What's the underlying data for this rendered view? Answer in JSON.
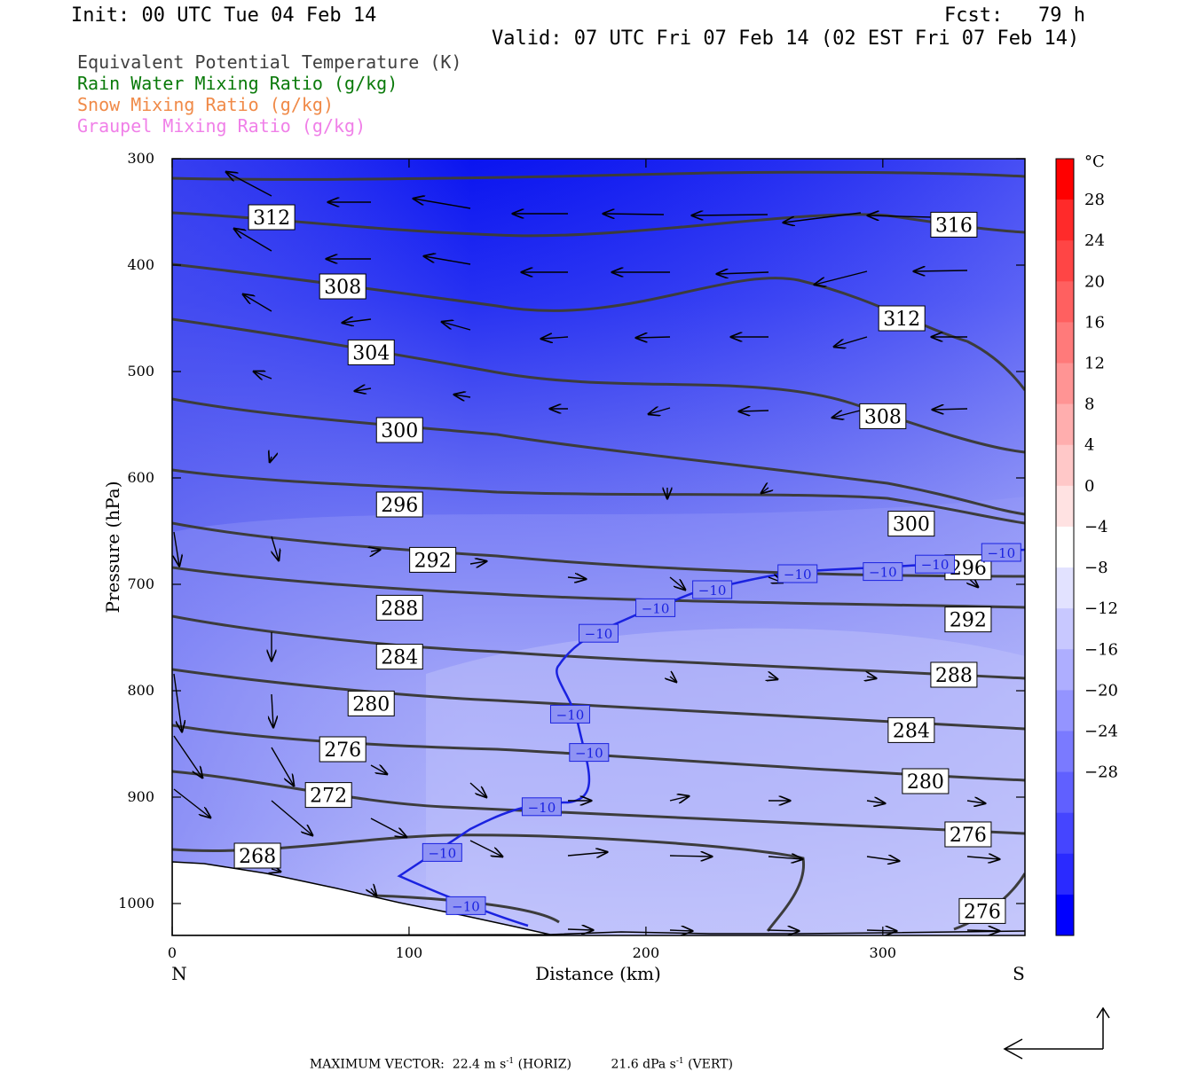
{
  "header": {
    "init": "Init: 00 UTC Tue 04 Feb 14",
    "fcst": "Fcst:   79 h",
    "valid": "Valid: 07 UTC Fri 07 Feb 14 (02 EST Fri 07 Feb 14)"
  },
  "legend": [
    {
      "label": "Equivalent Potential Temperature (K)",
      "color": "#404040"
    },
    {
      "label": "Rain Water Mixing Ratio (g/kg)",
      "color": "#0a7a0a"
    },
    {
      "label": "Snow Mixing Ratio (g/kg)",
      "color": "#f08a48"
    },
    {
      "label": "Graupel Mixing Ratio (g/kg)",
      "color": "#f080e8"
    }
  ],
  "footer": {
    "max_label": "MAXIMUM VECTOR:",
    "horiz_value": "22.4 m s",
    "horiz_exp": "-1",
    "horiz_suffix": " (HORIZ)",
    "vert_value": "21.6 dPa s",
    "vert_exp": "-1",
    "vert_suffix": " (VERT)"
  },
  "chart_data": {
    "type": "contour-cross-section",
    "xlabel": "Distance (km)",
    "ylabel": "Pressure (hPa)",
    "xlim": [
      0,
      360
    ],
    "ylim": [
      1030,
      300
    ],
    "x_ticks": [
      "0",
      "100",
      "200",
      "300"
    ],
    "y_ticks": [
      "300",
      "400",
      "500",
      "600",
      "700",
      "800",
      "900",
      "1000"
    ],
    "endpoints": {
      "left": "N",
      "right": "S"
    },
    "colorbar": {
      "unit": "°C",
      "labels": [
        "28",
        "24",
        "20",
        "16",
        "12",
        "8",
        "4",
        "0",
        "-4",
        "-8",
        "-12",
        "-16",
        "-20",
        "-24",
        "-28"
      ],
      "colors": [
        "#ff0000",
        "#ff2a2a",
        "#ff4545",
        "#ff6060",
        "#ff7a7a",
        "#ff9494",
        "#ffaeae",
        "#ffc8c8",
        "#ffe2e2",
        "#ffffff",
        "#e2e2ff",
        "#c8c8ff",
        "#aeaeff",
        "#9494ff",
        "#7a7aff",
        "#6060ff",
        "#4545ff",
        "#2a2aff",
        "#0000ff"
      ]
    },
    "theta_e_labels": [
      {
        "text": "312",
        "x": 42,
        "p": 355
      },
      {
        "text": "316",
        "x": 330,
        "p": 362
      },
      {
        "text": "308",
        "x": 72,
        "p": 420
      },
      {
        "text": "312",
        "x": 308,
        "p": 450
      },
      {
        "text": "304",
        "x": 84,
        "p": 482
      },
      {
        "text": "308",
        "x": 300,
        "p": 542
      },
      {
        "text": "300",
        "x": 96,
        "p": 555
      },
      {
        "text": "296",
        "x": 96,
        "p": 625
      },
      {
        "text": "300",
        "x": 312,
        "p": 643
      },
      {
        "text": "292",
        "x": 110,
        "p": 677
      },
      {
        "text": "296",
        "x": 336,
        "p": 684
      },
      {
        "text": "288",
        "x": 96,
        "p": 722
      },
      {
        "text": "292",
        "x": 336,
        "p": 733
      },
      {
        "text": "284",
        "x": 96,
        "p": 768
      },
      {
        "text": "288",
        "x": 330,
        "p": 785
      },
      {
        "text": "280",
        "x": 84,
        "p": 812
      },
      {
        "text": "284",
        "x": 312,
        "p": 837
      },
      {
        "text": "276",
        "x": 72,
        "p": 855
      },
      {
        "text": "280",
        "x": 318,
        "p": 885
      },
      {
        "text": "272",
        "x": 66,
        "p": 898
      },
      {
        "text": "276",
        "x": 336,
        "p": 935
      },
      {
        "text": "268",
        "x": 36,
        "p": 955
      },
      {
        "text": "276",
        "x": 342,
        "p": 1007
      }
    ],
    "temp_minus10_labels": [
      {
        "text": "−10",
        "x": 124,
        "p": 1002
      },
      {
        "text": "−10",
        "x": 114,
        "p": 952
      },
      {
        "text": "−10",
        "x": 156,
        "p": 909
      },
      {
        "text": "−10",
        "x": 176,
        "p": 858
      },
      {
        "text": "−10",
        "x": 168,
        "p": 822
      },
      {
        "text": "−10",
        "x": 180,
        "p": 746
      },
      {
        "text": "−10",
        "x": 204,
        "p": 722
      },
      {
        "text": "−10",
        "x": 228,
        "p": 705
      },
      {
        "text": "−10",
        "x": 264,
        "p": 690
      },
      {
        "text": "−10",
        "x": 300,
        "p": 688
      },
      {
        "text": "−10",
        "x": 322,
        "p": 681
      },
      {
        "text": "−10",
        "x": 350,
        "p": 670
      }
    ]
  }
}
